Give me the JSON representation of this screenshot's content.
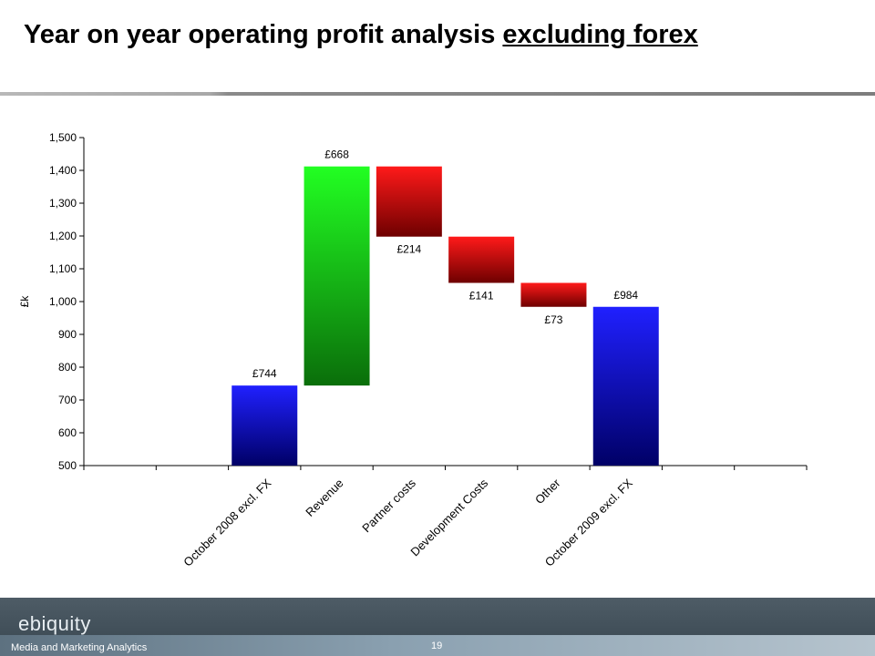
{
  "header": {
    "title_main": "Year on year operating profit analysis ",
    "title_emph": "excluding forex"
  },
  "chart_data": {
    "type": "waterfall",
    "title": "",
    "ylabel": "£k",
    "ylim": [
      500,
      1500
    ],
    "yticks": [
      "500",
      "600",
      "700",
      "800",
      "900",
      "1,000",
      "1,100",
      "1,200",
      "1,300",
      "1,400",
      "1,500"
    ],
    "ytick_values": [
      500,
      600,
      700,
      800,
      900,
      1000,
      1100,
      1200,
      1300,
      1400,
      1500
    ],
    "slot_count": 10,
    "grid": false,
    "bars": [
      {
        "slot": 2,
        "category": "October 2008 excl. FX",
        "start": 500,
        "end": 744,
        "label": "£744",
        "kind": "total",
        "label_pos": "above"
      },
      {
        "slot": 3,
        "category": "Revenue",
        "start": 744,
        "end": 1412,
        "label": "£668",
        "kind": "increase",
        "label_pos": "above"
      },
      {
        "slot": 4,
        "category": "Partner costs",
        "start": 1412,
        "end": 1198,
        "label": "£214",
        "kind": "decrease",
        "label_pos": "below"
      },
      {
        "slot": 5,
        "category": "Development Costs",
        "start": 1198,
        "end": 1057,
        "label": "£141",
        "kind": "decrease",
        "label_pos": "below"
      },
      {
        "slot": 6,
        "category": "Other",
        "start": 1057,
        "end": 984,
        "label": "£73",
        "kind": "decrease",
        "label_pos": "below"
      },
      {
        "slot": 7,
        "category": "October 2009 excl. FX",
        "start": 500,
        "end": 984,
        "label": "£984",
        "kind": "total",
        "label_pos": "above"
      }
    ],
    "colors": {
      "total": [
        "#2020ff",
        "#000066"
      ],
      "increase": [
        "#22ff22",
        "#0a6e0a"
      ],
      "decrease": [
        "#ff1a1a",
        "#6e0000"
      ]
    }
  },
  "footer": {
    "logo": "ebiquity",
    "tagline": "Media and Marketing Analytics",
    "page_number": "19"
  }
}
